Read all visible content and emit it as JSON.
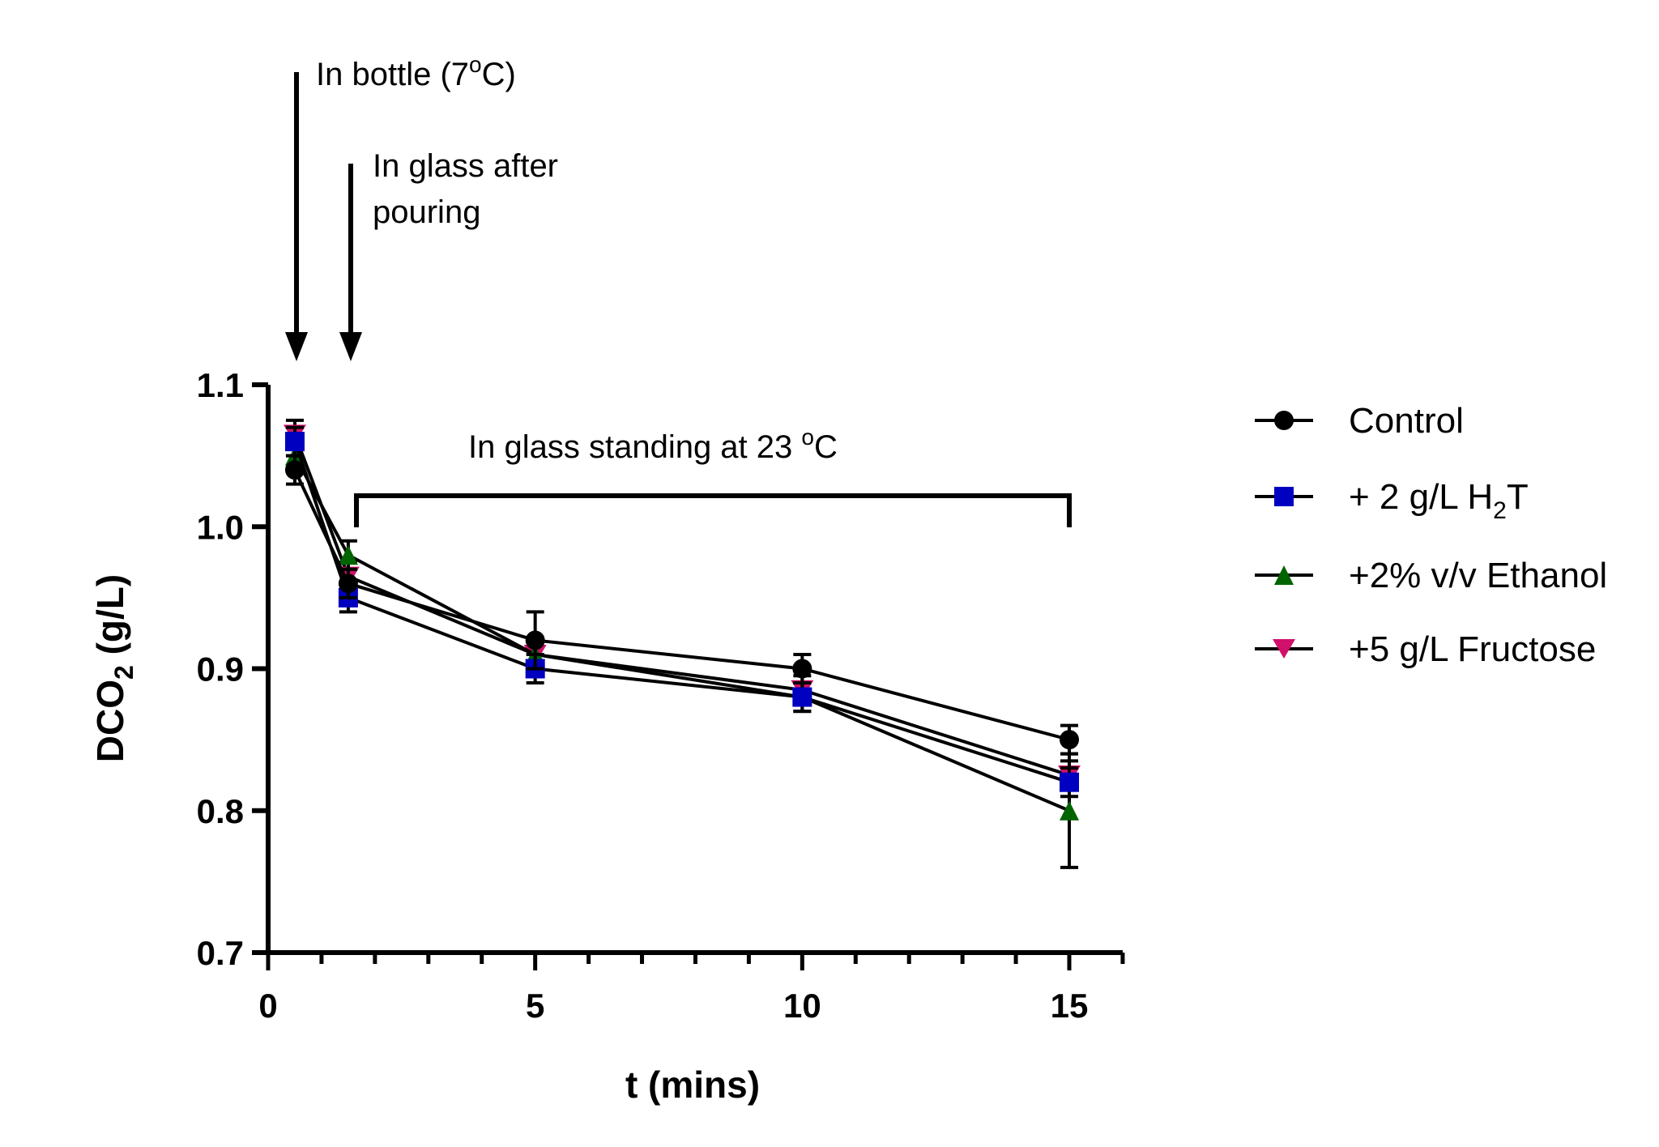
{
  "chart_data": {
    "type": "line",
    "xlabel": "t (mins)",
    "ylabel_main": "DCO",
    "ylabel_sub": "2",
    "ylabel_tail": " (g/L)",
    "xlim": [
      0,
      16
    ],
    "ylim": [
      0.7,
      1.1
    ],
    "xticks": [
      0,
      5,
      10,
      15
    ],
    "yticks": [
      "0.7",
      "0.8",
      "0.9",
      "1.0",
      "1.1"
    ],
    "grid": false,
    "legend_position": "right",
    "x": [
      0.5,
      1.5,
      5,
      10,
      15
    ],
    "series": [
      {
        "name": "Control",
        "marker": "circle",
        "color": "#000000",
        "values": [
          1.04,
          0.96,
          0.92,
          0.9,
          0.85
        ],
        "errors": [
          0.01,
          0.01,
          0.02,
          0.01,
          0.01
        ]
      },
      {
        "name": "+ 2 g/L H2T",
        "name_parts": [
          "+ 2 g/L H",
          "2",
          "T"
        ],
        "marker": "square",
        "color": "#0000c0",
        "values": [
          1.06,
          0.95,
          0.9,
          0.88,
          0.82
        ],
        "errors": [
          0.01,
          0.01,
          0.01,
          0.01,
          0.01
        ]
      },
      {
        "name": "+2% v/v Ethanol",
        "marker": "triangle-up",
        "color": "#006400",
        "values": [
          1.05,
          0.98,
          0.91,
          0.88,
          0.8
        ],
        "errors": [
          0.01,
          0.01,
          0.01,
          0.01,
          0.04
        ]
      },
      {
        "name": "+5 g/L Fructose",
        "marker": "triangle-down",
        "color": "#d0106a",
        "values": [
          1.065,
          0.965,
          0.91,
          0.885,
          0.825
        ],
        "errors": [
          0.01,
          0.01,
          0.01,
          0.01,
          0.01
        ]
      }
    ],
    "annotations": {
      "bottle": "In bottle (7",
      "bottle_deg": "o",
      "bottle_tail": "C)",
      "glass_line1": "In glass after",
      "glass_line2": "pouring",
      "standing": "In glass standing at 23 ",
      "standing_deg": "o",
      "standing_tail": "C"
    }
  }
}
